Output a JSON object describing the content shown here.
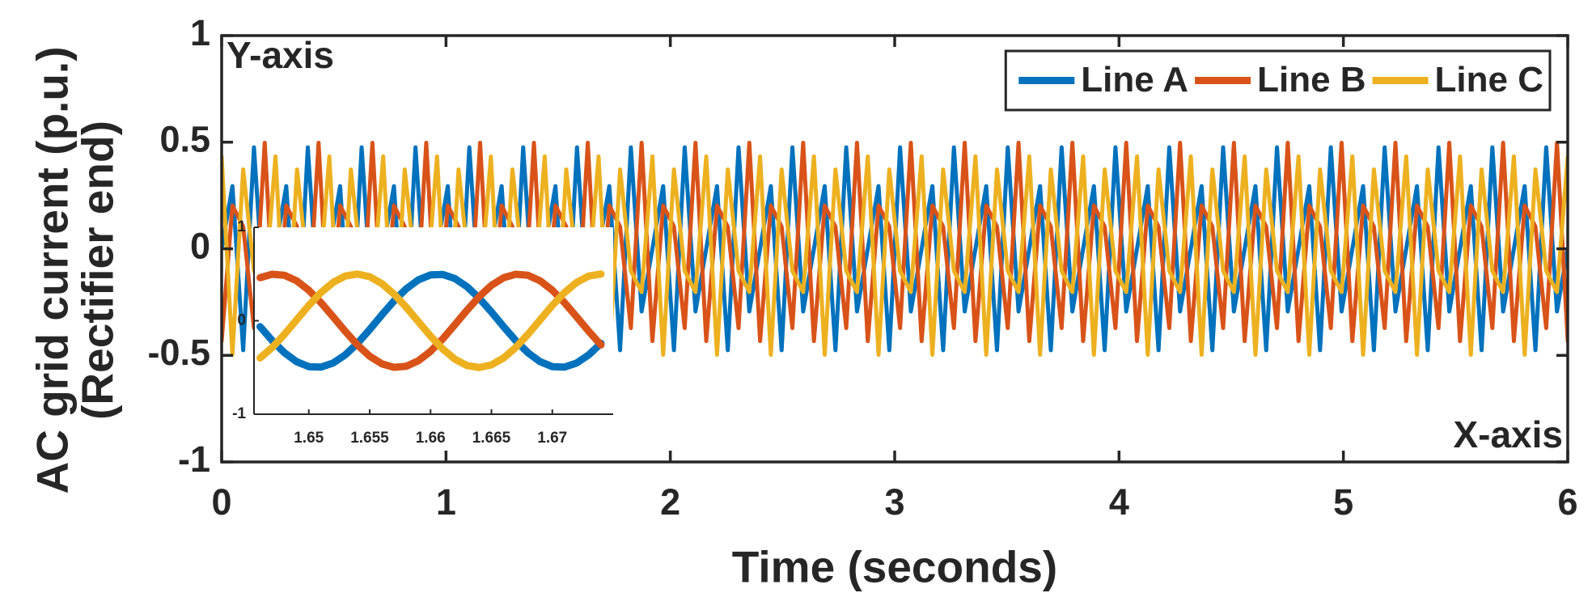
{
  "chart_data": [
    {
      "type": "line",
      "xlabel": "Time (seconds)",
      "ylabel": [
        "AC grid current (p.u.)",
        "(Rectifier end)"
      ],
      "annotations": [
        "Y-axis",
        "X-axis"
      ],
      "xlim": [
        0,
        6
      ],
      "ylim": [
        -1,
        1
      ],
      "xticks": [
        0,
        1,
        2,
        3,
        4,
        5,
        6
      ],
      "yticks": [
        -1,
        -0.5,
        0,
        0.5,
        1
      ],
      "grid": false,
      "box": true,
      "legend": "northeast",
      "x": [
        0,
        0.048,
        0.096,
        0.144,
        0.192,
        0.24,
        0.288,
        0.336,
        0.384,
        0.432,
        0.48,
        0.528,
        0.576,
        0.624,
        0.672,
        0.72,
        0.768,
        0.816,
        0.864,
        0.912,
        0.96,
        1.008,
        1.056,
        1.104,
        1.152,
        1.2,
        1.248,
        1.296,
        1.344,
        1.392,
        1.44,
        1.488,
        1.536,
        1.584,
        1.632,
        1.68,
        1.728,
        1.776,
        1.824,
        1.872,
        1.92,
        1.968,
        2.016,
        2.064,
        2.112,
        2.16,
        2.208,
        2.256,
        2.304,
        2.352,
        2.4,
        2.448,
        2.496,
        2.544,
        2.592,
        2.64,
        2.688,
        2.736,
        2.784,
        2.832,
        2.88,
        2.928,
        2.976,
        3.024,
        3.072,
        3.12,
        3.168,
        3.216,
        3.264,
        3.312,
        3.36,
        3.408,
        3.456,
        3.504,
        3.552,
        3.6,
        3.648,
        3.696,
        3.744,
        3.792,
        3.84,
        3.888,
        3.936,
        3.984,
        4.032,
        4.08,
        4.128,
        4.176,
        4.224,
        4.272,
        4.32,
        4.368,
        4.416,
        4.464,
        4.512,
        4.56,
        4.608,
        4.656,
        4.704,
        4.752,
        4.8,
        4.848,
        4.896,
        4.944,
        4.992,
        5.04,
        5.088,
        5.136,
        5.184,
        5.232,
        5.28,
        5.328,
        5.376,
        5.424,
        5.472,
        5.52,
        5.568,
        5.616,
        5.664,
        5.712,
        5.76,
        5.808,
        5.856,
        5.904,
        5.952,
        6.0
      ],
      "series": [
        {
          "name": "Line A",
          "color": "#0072BD",
          "values": [
            0,
            0.294,
            -0.476,
            0.476,
            -0.294,
            0,
            0.294,
            -0.476,
            0.476,
            -0.294,
            0,
            0.294,
            -0.476,
            0.476,
            -0.294,
            0,
            0.294,
            -0.476,
            0.476,
            -0.294,
            0,
            0.294,
            -0.476,
            0.476,
            -0.294,
            0,
            0.294,
            -0.476,
            0.476,
            -0.294,
            0,
            0.294,
            -0.476,
            0.476,
            -0.294,
            0,
            0.294,
            -0.476,
            0.476,
            -0.294,
            0,
            0.294,
            -0.476,
            0.476,
            -0.294,
            0,
            0.294,
            -0.476,
            0.476,
            -0.294,
            0,
            0.294,
            -0.476,
            0.476,
            -0.294,
            0,
            0.294,
            -0.476,
            0.476,
            -0.294,
            0,
            0.294,
            -0.476,
            0.476,
            -0.294,
            0,
            0.294,
            -0.476,
            0.476,
            -0.294,
            0,
            0.294,
            -0.476,
            0.476,
            -0.294,
            0,
            0.294,
            -0.476,
            0.476,
            -0.294,
            0,
            0.294,
            -0.476,
            0.476,
            -0.294,
            0,
            0.294,
            -0.476,
            0.476,
            -0.294,
            0,
            0.294,
            -0.476,
            0.476,
            -0.294,
            0,
            0.294,
            -0.476,
            0.476,
            -0.294,
            0,
            0.294,
            -0.476,
            0.476,
            -0.294,
            0,
            0.294,
            -0.476,
            0.476,
            -0.294,
            0,
            0.294,
            -0.476,
            0.476,
            -0.294,
            0,
            0.294,
            -0.476,
            0.476,
            -0.294,
            0,
            0.294,
            -0.476,
            0.476,
            -0.294,
            0
          ]
        },
        {
          "name": "Line B",
          "color": "#D95319",
          "values": [
            -0.433,
            0.203,
            0.104,
            -0.372,
            0.497,
            -0.433,
            0.203,
            0.104,
            -0.372,
            0.497,
            -0.433,
            0.203,
            0.104,
            -0.372,
            0.497,
            -0.433,
            0.203,
            0.104,
            -0.372,
            0.497,
            -0.433,
            0.203,
            0.104,
            -0.372,
            0.497,
            -0.433,
            0.203,
            0.104,
            -0.372,
            0.497,
            -0.433,
            0.203,
            0.104,
            -0.372,
            0.497,
            -0.433,
            0.203,
            0.104,
            -0.372,
            0.497,
            -0.433,
            0.203,
            0.104,
            -0.372,
            0.497,
            -0.433,
            0.203,
            0.104,
            -0.372,
            0.497,
            -0.433,
            0.203,
            0.104,
            -0.372,
            0.497,
            -0.433,
            0.203,
            0.104,
            -0.372,
            0.497,
            -0.433,
            0.203,
            0.104,
            -0.372,
            0.497,
            -0.433,
            0.203,
            0.104,
            -0.372,
            0.497,
            -0.433,
            0.203,
            0.104,
            -0.372,
            0.497,
            -0.433,
            0.203,
            0.104,
            -0.372,
            0.497,
            -0.433,
            0.203,
            0.104,
            -0.372,
            0.497,
            -0.433,
            0.203,
            0.104,
            -0.372,
            0.497,
            -0.433,
            0.203,
            0.104,
            -0.372,
            0.497,
            -0.433,
            0.203,
            0.104,
            -0.372,
            0.497,
            -0.433,
            0.203,
            0.104,
            -0.372,
            0.497,
            -0.433,
            0.203,
            0.104,
            -0.372,
            0.497,
            -0.433,
            0.203,
            0.104,
            -0.372,
            0.497,
            -0.433,
            0.203,
            0.104,
            -0.372,
            0.497,
            -0.433,
            0.203,
            0.104,
            -0.372,
            0.497,
            -0.433
          ]
        },
        {
          "name": "Line C",
          "color": "#EDB120",
          "values": [
            0.433,
            -0.497,
            0.372,
            -0.104,
            -0.203,
            0.433,
            -0.497,
            0.372,
            -0.104,
            -0.203,
            0.433,
            -0.497,
            0.372,
            -0.104,
            -0.203,
            0.433,
            -0.497,
            0.372,
            -0.104,
            -0.203,
            0.433,
            -0.497,
            0.372,
            -0.104,
            -0.203,
            0.433,
            -0.497,
            0.372,
            -0.104,
            -0.203,
            0.433,
            -0.497,
            0.372,
            -0.104,
            -0.203,
            0.433,
            -0.497,
            0.372,
            -0.104,
            -0.203,
            0.433,
            -0.497,
            0.372,
            -0.104,
            -0.203,
            0.433,
            -0.497,
            0.372,
            -0.104,
            -0.203,
            0.433,
            -0.497,
            0.372,
            -0.104,
            -0.203,
            0.433,
            -0.497,
            0.372,
            -0.104,
            -0.203,
            0.433,
            -0.497,
            0.372,
            -0.104,
            -0.203,
            0.433,
            -0.497,
            0.372,
            -0.104,
            -0.203,
            0.433,
            -0.497,
            0.372,
            -0.104,
            -0.203,
            0.433,
            -0.497,
            0.372,
            -0.104,
            -0.203,
            0.433,
            -0.497,
            0.372,
            -0.104,
            -0.203,
            0.433,
            -0.497,
            0.372,
            -0.104,
            -0.203,
            0.433,
            -0.497,
            0.372,
            -0.104,
            -0.203,
            0.433,
            -0.497,
            0.372,
            -0.104,
            -0.203,
            0.433,
            -0.497,
            0.372,
            -0.104,
            -0.203,
            0.433,
            -0.497,
            0.372,
            -0.104,
            -0.203,
            0.433,
            -0.497,
            0.372,
            -0.104,
            -0.203,
            0.433,
            -0.497,
            0.372,
            -0.104,
            -0.203,
            0.433,
            -0.497,
            0.372,
            -0.104,
            -0.203,
            0.433
          ]
        }
      ]
    },
    {
      "type": "line",
      "xlim": [
        1.6455,
        1.675
      ],
      "ylim": [
        -1,
        1
      ],
      "xticks": [
        1.65,
        1.655,
        1.66,
        1.665,
        1.67
      ],
      "yticks": [
        -1,
        0,
        1
      ],
      "grid": false,
      "box": false,
      "x": [
        1.646,
        1.647,
        1.648,
        1.649,
        1.65,
        1.651,
        1.652,
        1.653,
        1.654,
        1.655,
        1.656,
        1.657,
        1.658,
        1.659,
        1.66,
        1.661,
        1.662,
        1.663,
        1.664,
        1.665,
        1.666,
        1.667,
        1.668,
        1.669,
        1.67,
        1.671,
        1.672,
        1.673,
        1.674
      ],
      "series": [
        {
          "color": "#0072BD",
          "values": [
            -0.063,
            -0.213,
            -0.342,
            -0.438,
            -0.491,
            -0.496,
            -0.452,
            -0.364,
            -0.241,
            -0.094,
            0.063,
            0.213,
            0.342,
            0.438,
            0.491,
            0.496,
            0.452,
            0.364,
            0.241,
            0.094,
            -0.063,
            -0.213,
            -0.342,
            -0.438,
            -0.491,
            -0.496,
            -0.452,
            -0.364,
            -0.241
          ]
        },
        {
          "color": "#D95319",
          "values": [
            0.461,
            0.498,
            0.487,
            0.428,
            0.327,
            0.194,
            0.042,
            -0.114,
            -0.259,
            -0.379,
            -0.461,
            -0.498,
            -0.487,
            -0.428,
            -0.327,
            -0.194,
            -0.042,
            0.114,
            0.259,
            0.379,
            0.461,
            0.498,
            0.487,
            0.428,
            0.327,
            0.194,
            0.042,
            -0.114,
            -0.259
          ]
        },
        {
          "color": "#EDB120",
          "values": [
            -0.398,
            -0.285,
            -0.145,
            0.01,
            0.164,
            0.302,
            0.411,
            0.479,
            0.5,
            0.472,
            0.398,
            0.285,
            0.145,
            -0.01,
            -0.164,
            -0.302,
            -0.411,
            -0.479,
            -0.5,
            -0.472,
            -0.398,
            -0.285,
            -0.145,
            0.01,
            0.164,
            0.302,
            0.411,
            0.479,
            0.5
          ]
        }
      ]
    }
  ]
}
